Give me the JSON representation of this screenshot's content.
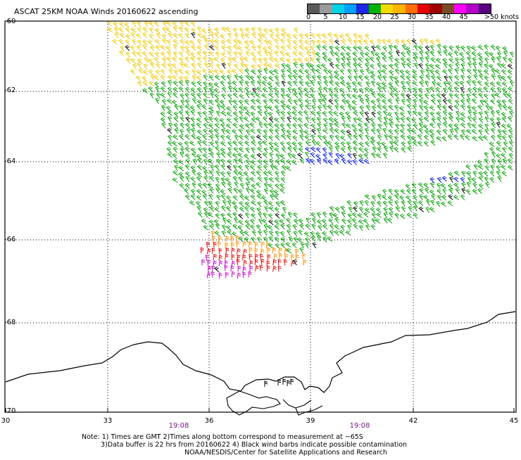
{
  "title": "ASCAT 25KM NOAA Winds 20160622 ascending",
  "colorbar": {
    "colors": [
      "#5a5a5a",
      "#9a9a9a",
      "#00d2e6",
      "#00a0ff",
      "#1e28e6",
      "#00b400",
      "#f0dc00",
      "#ffb400",
      "#ff6e00",
      "#e60000",
      "#a00000",
      "#7a4a28",
      "#ff00ff",
      "#b400c8",
      "#5a0080"
    ],
    "ticks": [
      "0",
      "5",
      "10",
      "15",
      "20",
      "25",
      "30",
      "35",
      "40",
      "45"
    ],
    "unit": ">50 knots"
  },
  "axes": {
    "lat_labels": [
      "-60",
      "-62",
      "-64",
      "-66",
      "-68",
      "-70"
    ],
    "lon_labels": [
      "30",
      "33",
      "36",
      "39",
      "42",
      "45"
    ]
  },
  "time_labels": [
    "19:08",
    "19:08"
  ],
  "notes": {
    "line1": "Note: 1) Times are GMT 2)Times along bottom correspond to measurement at ~65S",
    "line2": "3)Data buffer is 22 hrs from 20160622 4) Black wind barbs indicate possible contamination",
    "line3": "NOAA/NESDIS/Center for Satellite Applications and Research"
  },
  "barb_colors": {
    "yellow": "#f0c800",
    "green": "#00a000",
    "blue": "#0018e0",
    "orange": "#ff8c00",
    "red": "#e00000",
    "magenta": "#c800c8",
    "black": "#000000"
  }
}
